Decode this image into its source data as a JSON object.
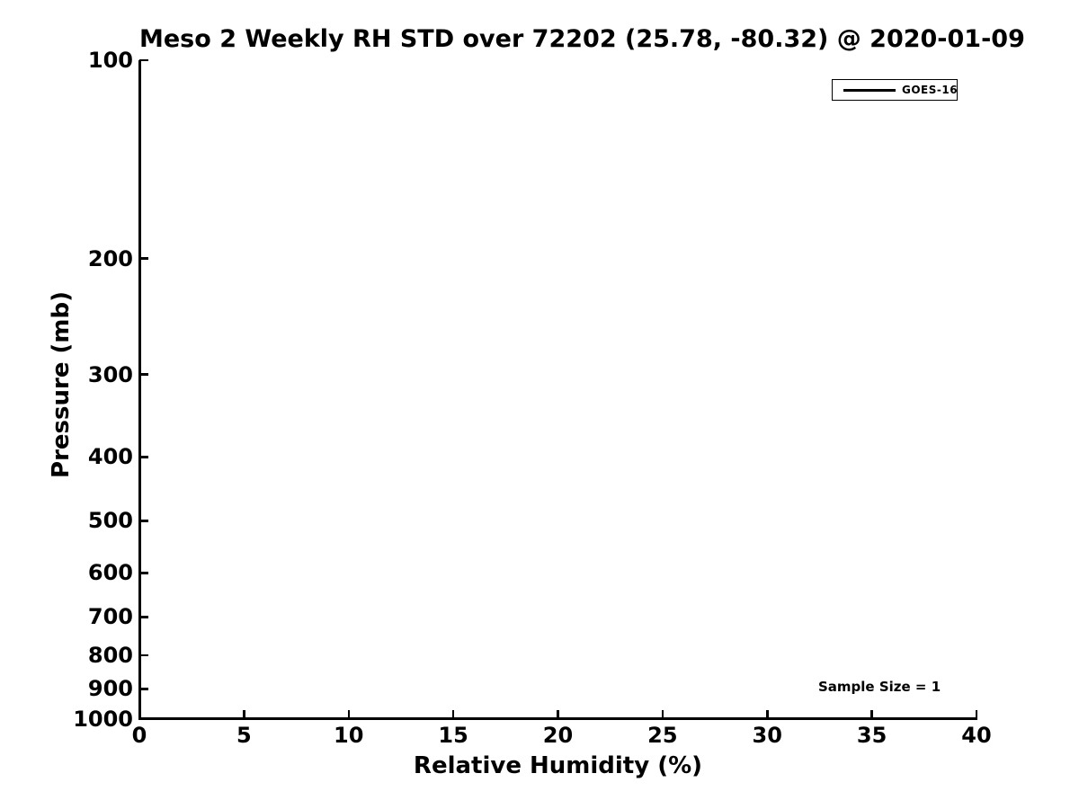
{
  "figure": {
    "background": "#ffffff",
    "text_color": "#000000",
    "axis_color": "#000000"
  },
  "chart_data": {
    "type": "line",
    "title": "Meso 2 Weekly RH STD over 72202 (25.78, -80.32) @ 2020-01-09",
    "xlabel": "Relative Humidity (%)",
    "ylabel": "Pressure (mb)",
    "xlim": [
      0,
      40
    ],
    "ylim": [
      100,
      1000
    ],
    "x_ticks": [
      0,
      5,
      10,
      15,
      20,
      25,
      30,
      35,
      40
    ],
    "y_ticks": [
      100,
      200,
      300,
      400,
      500,
      600,
      700,
      800,
      900,
      1000
    ],
    "x_scale": "linear",
    "y_scale": "log",
    "y_axis_inverted": true,
    "grid": false,
    "legend": {
      "position": "upper-right",
      "entries": [
        {
          "label": "GOES-16",
          "color": "#000000"
        }
      ]
    },
    "series": [
      {
        "name": "GOES-16",
        "color": "#000000",
        "x": [],
        "y": []
      }
    ],
    "annotations": [
      {
        "text": "Sample Size = 1"
      }
    ]
  }
}
